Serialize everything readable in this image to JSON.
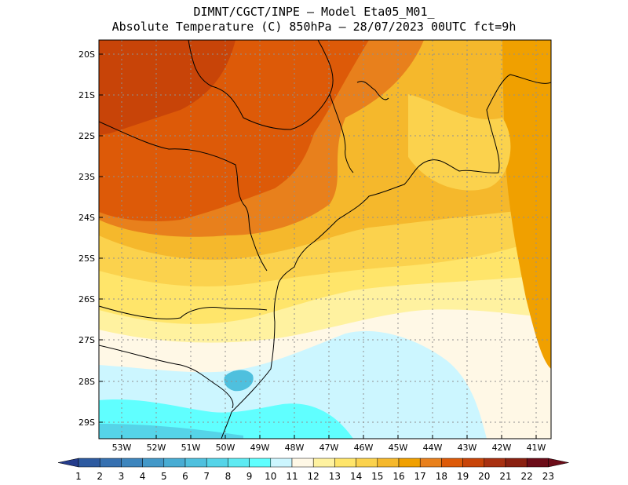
{
  "header": {
    "line1": "DIMNT/CGCT/INPE —  Model Eta05_M01_",
    "line2": "Absolute Temperature (C) 850hPa —  28/07/2023 00UTC fct=9h"
  },
  "map": {
    "lat_labels": [
      "20S",
      "21S",
      "22S",
      "23S",
      "24S",
      "25S",
      "26S",
      "27S",
      "28S",
      "29S"
    ],
    "lon_labels": [
      "53W",
      "52W",
      "51W",
      "50W",
      "49W",
      "48W",
      "47W",
      "46W",
      "45W",
      "44W",
      "43W",
      "42W",
      "41W"
    ]
  },
  "colorbar": {
    "labels": [
      "1",
      "2",
      "3",
      "4",
      "5",
      "6",
      "7",
      "8",
      "9",
      "10",
      "11",
      "12",
      "13",
      "14",
      "15",
      "16",
      "17",
      "18",
      "19",
      "20",
      "21",
      "22",
      "23"
    ],
    "colors": [
      "#243c8c",
      "#2d5aa0",
      "#3670b0",
      "#3d85bd",
      "#4398c8",
      "#48acd3",
      "#4fc0de",
      "#55d4e8",
      "#5eeaf2",
      "#60ffff",
      "#ccf6ff",
      "#fff8e6",
      "#fff2a0",
      "#ffe56a",
      "#fbd24d",
      "#f5b82c",
      "#f0a000",
      "#e8801c",
      "#dd5a08",
      "#c84408",
      "#a83010",
      "#8a2010",
      "#6c0c18"
    ]
  }
}
